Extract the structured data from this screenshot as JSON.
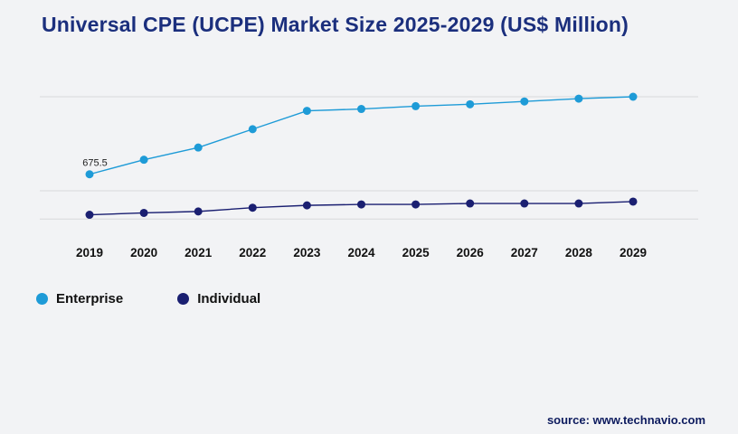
{
  "title": "Universal CPE (UCPE) Market Size 2025-2029 (US$ Million)",
  "source": "source: www.technavio.com",
  "legend": [
    {
      "label": "Enterprise",
      "color": "#1e9bd7"
    },
    {
      "label": "Individual",
      "color": "#1a1f71"
    }
  ],
  "chart_data": {
    "type": "line",
    "title": "Universal CPE (UCPE) Market Size 2025-2029 (US$ Million)",
    "categories": [
      "2019",
      "2020",
      "2021",
      "2022",
      "2023",
      "2024",
      "2025",
      "2026",
      "2027",
      "2028",
      "2029"
    ],
    "series": [
      {
        "name": "Enterprise",
        "color": "#1e9bd7",
        "values": [
          675.5,
          830,
          960,
          1155,
          1350,
          1370,
          1400,
          1420,
          1450,
          1480,
          1500
        ]
      },
      {
        "name": "Individual",
        "color": "#1a1f71",
        "values": [
          245,
          265,
          280,
          320,
          345,
          355,
          355,
          365,
          365,
          365,
          385
        ]
      }
    ],
    "xlabel": "",
    "ylabel": "",
    "ylim": [
      0,
      1500
    ],
    "gridline_values": [
      200,
      500,
      1500
    ],
    "grid": "horizontal-only",
    "legend_position": "bottom-left",
    "annotations": [
      {
        "text": "675.5",
        "series": "Enterprise",
        "category": "2019"
      }
    ],
    "colors": {
      "background": "#f2f3f5",
      "gridline": "#d8d9dc",
      "title": "#1b2f7d"
    }
  }
}
